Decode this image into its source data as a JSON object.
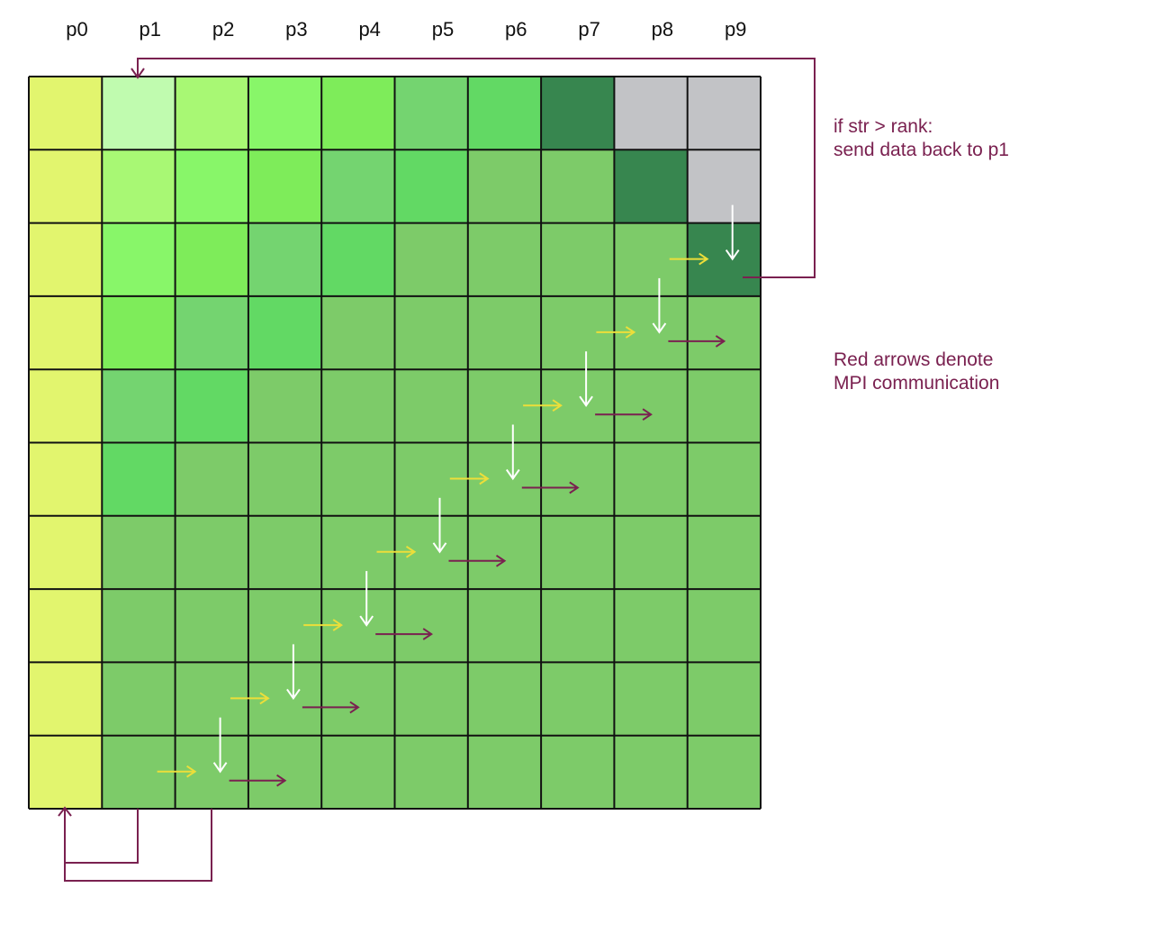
{
  "columns": [
    "p0",
    "p1",
    "p2",
    "p3",
    "p4",
    "p5",
    "p6",
    "p7",
    "p8",
    "p9"
  ],
  "row_count": 10,
  "notes": {
    "condition": {
      "line1": "if str > rank:",
      "line2": "send data back to p1"
    },
    "legend": {
      "line1": "Red arrows denote",
      "line2": "MPI communication"
    }
  },
  "colors": {
    "p0_column": "#e2f56e",
    "highlight_cell": "#c0fbaf",
    "diagonal_cell": "#37864f",
    "empty_cell": "#c2c3c6",
    "grid_line": "#111111",
    "mpi_arrow": "#7a2150",
    "local_arrow": "#ecde3a",
    "down_arrow": "#ffffff"
  },
  "green_shades": [
    "#a8f874",
    "#88f669",
    "#7eec5a",
    "#74d470",
    "#62d964",
    "#7dcb69"
  ]
}
